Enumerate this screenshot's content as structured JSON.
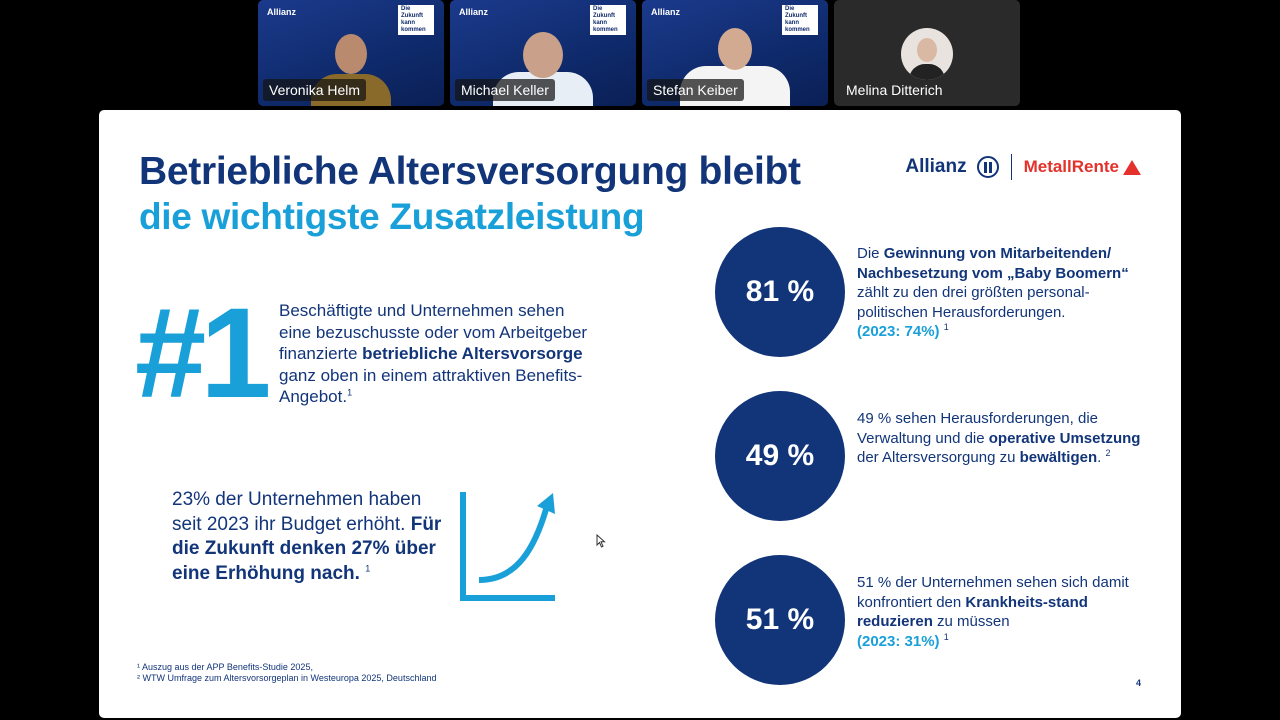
{
  "participants": [
    {
      "name": "Veronika Helm",
      "brand": "Allianz",
      "tag": "Die Zukunft kann kommen"
    },
    {
      "name": "Michael Keller",
      "brand": "Allianz",
      "tag": "Die Zukunft kann kommen"
    },
    {
      "name": "Stefan Keiber",
      "brand": "Allianz",
      "tag": "Die Zukunft kann kommen"
    },
    {
      "name": "Melina Ditterich"
    }
  ],
  "slide": {
    "title_line1": "Betriebliche Altersversorgung bleibt",
    "title_line2": "die wichtigste Zusatzleistung",
    "logo": {
      "allianz": "Allianz",
      "metallrente": "MetallRente"
    },
    "rank": {
      "big": "#1",
      "text_a": "Beschäftigte und Unternehmen sehen eine bezuschusste oder vom Arbeitgeber finanzierte ",
      "text_bold": "betriebliche Altersvorsorge",
      "text_b": " ganz oben in einem attraktiven Benefits-Angebot.",
      "footnote_ref": "1"
    },
    "budget": {
      "text_a": "23% der Unternehmen haben seit 2023 ihr Budget erhöht.",
      "text_bold": "Für die Zukunft denken 27% über eine Erhöhung nach.",
      "footnote_ref": "1"
    },
    "stats": [
      {
        "value": "81 %",
        "bold1": "Die ",
        "bold_text": "Gewinnung von Mitarbeitenden/ Nachbesetzung vom „Baby Boomern“",
        "rest": " zählt  zu den drei größten personal-politischen Herausforderungen.",
        "highlight": "(2023: 74%)",
        "footnote_ref": "1"
      },
      {
        "value": "49 %",
        "text_a": "49 % sehen Herausforderungen, die Verwaltung und die ",
        "bold_a": "operative Umsetzung",
        "text_b": " der Altersversorgung zu ",
        "bold_b": "bewältigen",
        "text_c": ".",
        "footnote_ref": "2"
      },
      {
        "value": "51 %",
        "text_a": "51 % der Unternehmen sehen sich damit konfrontiert den ",
        "bold_a": "Krankheits-stand reduzieren",
        "text_b": " zu müssen",
        "highlight": "(2023: 31%)",
        "footnote_ref": "1"
      }
    ],
    "footnotes": [
      "¹ Auszug aus der APP Benefits-Studie 2025,",
      "² WTW Umfrage zum Altersvorsorgeplan in Westeuropa 2025, Deutschland"
    ],
    "page_number": "4"
  },
  "colors": {
    "navy": "#12357a",
    "cyan": "#1aa0d8",
    "red": "#e4312b"
  }
}
